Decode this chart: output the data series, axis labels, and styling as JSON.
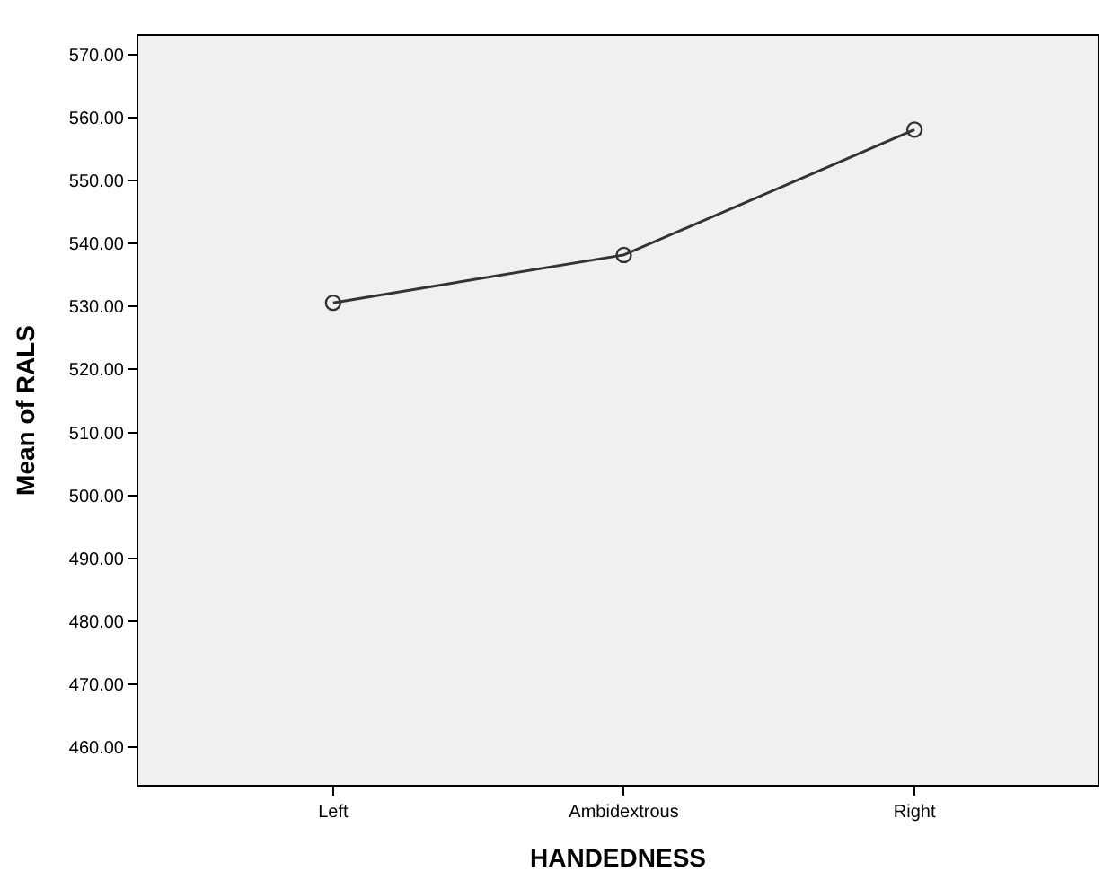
{
  "chart_data": {
    "type": "line",
    "xlabel": "HANDEDNESS",
    "ylabel": "Mean of RALS",
    "categories": [
      "Left",
      "Ambidextrous",
      "Right"
    ],
    "series": [
      {
        "color": "#333333",
        "values": [
          530.6,
          538.2,
          558.1
        ]
      }
    ],
    "ylim": [
      454,
      573
    ],
    "yticks": [
      {
        "value": 460,
        "label": "460.00"
      },
      {
        "value": 470,
        "label": "470.00"
      },
      {
        "value": 480,
        "label": "480.00"
      },
      {
        "value": 490,
        "label": "490.00"
      },
      {
        "value": 500,
        "label": "500.00"
      },
      {
        "value": 510,
        "label": "510.00"
      },
      {
        "value": 520,
        "label": "520.00"
      },
      {
        "value": 530,
        "label": "530.00"
      },
      {
        "value": 540,
        "label": "540.00"
      },
      {
        "value": 550,
        "label": "550.00"
      },
      {
        "value": 560,
        "label": "560.00"
      },
      {
        "value": 570,
        "label": "570.00"
      }
    ],
    "marker": "circle",
    "line_style": "solid",
    "grid": false
  }
}
